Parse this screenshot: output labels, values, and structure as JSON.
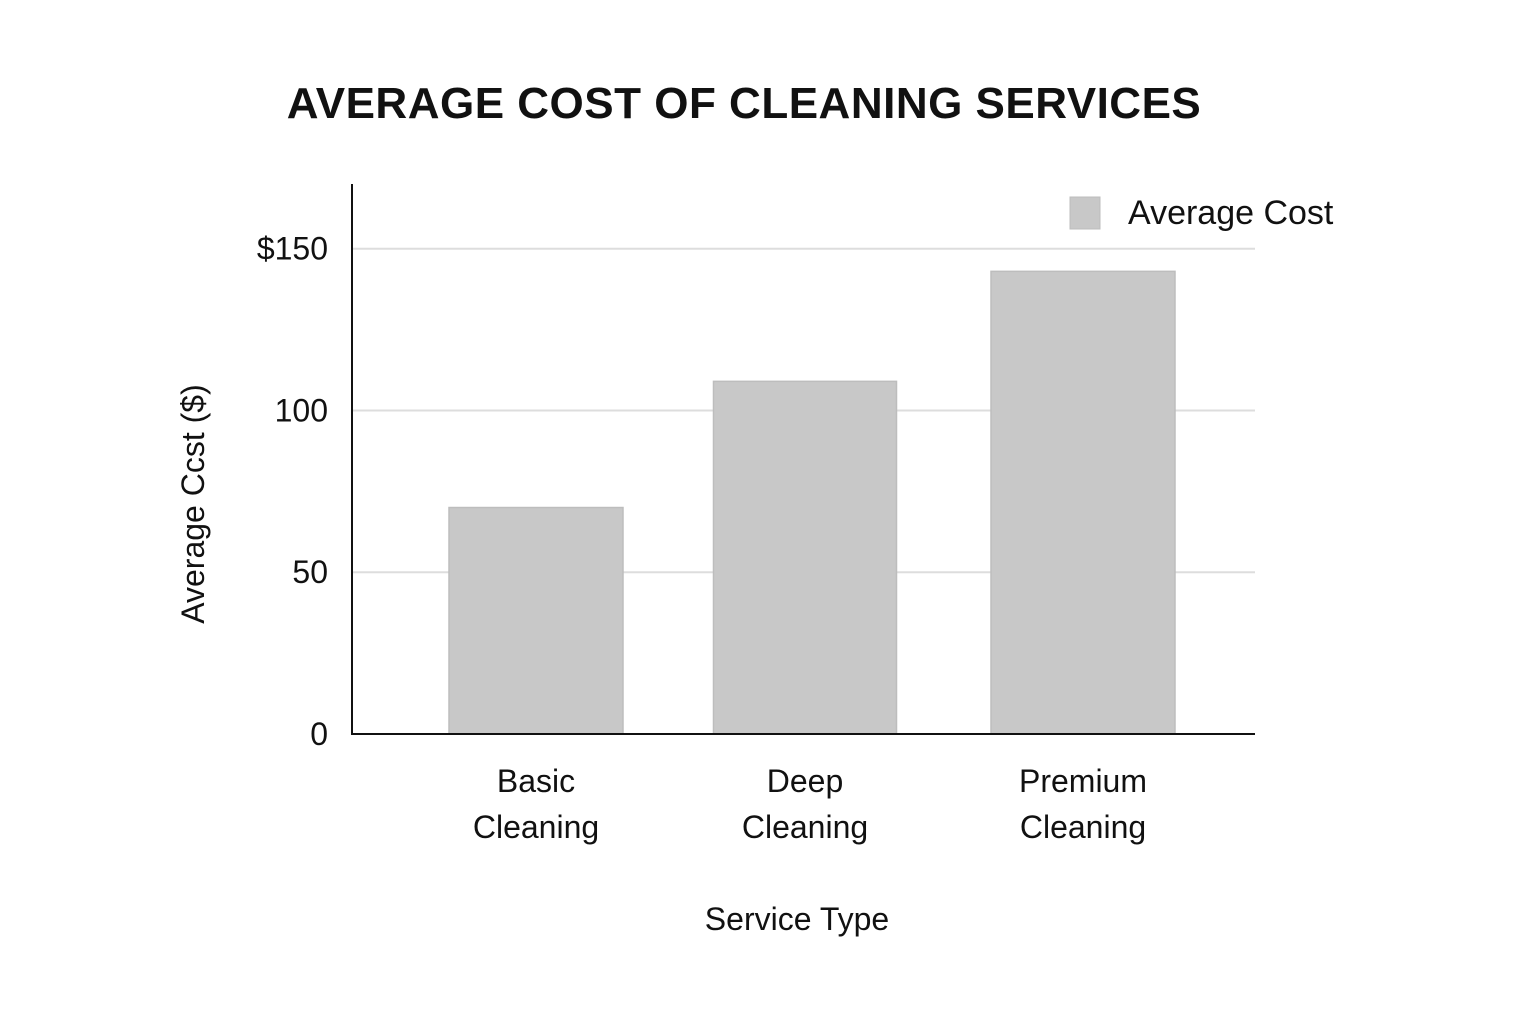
{
  "chart_data": {
    "type": "bar",
    "title": "AVERAGE COST OF CLEANING SERVICES",
    "categories": [
      [
        "Basic",
        "Cleaning"
      ],
      [
        "Deep",
        "Cleaning"
      ],
      [
        "Premium",
        "Cleaning"
      ]
    ],
    "series": [
      {
        "name": "Average Cost",
        "values": [
          70,
          109,
          143
        ],
        "color": "#c8c8c8"
      }
    ],
    "xlabel": "Service Type",
    "ylabel": "Average Ccst ($)",
    "ylim": [
      0,
      170
    ],
    "yticks": [
      {
        "value": 0,
        "label": "0"
      },
      {
        "value": 50,
        "label": "50"
      },
      {
        "value": 100,
        "label": "100"
      },
      {
        "value": 150,
        "label": "$150"
      }
    ],
    "grid": true,
    "legend_position": "top-right",
    "colors": {
      "axis": "#111111",
      "grid": "#dddddd",
      "bar_stroke": "#bdbdbd"
    }
  }
}
